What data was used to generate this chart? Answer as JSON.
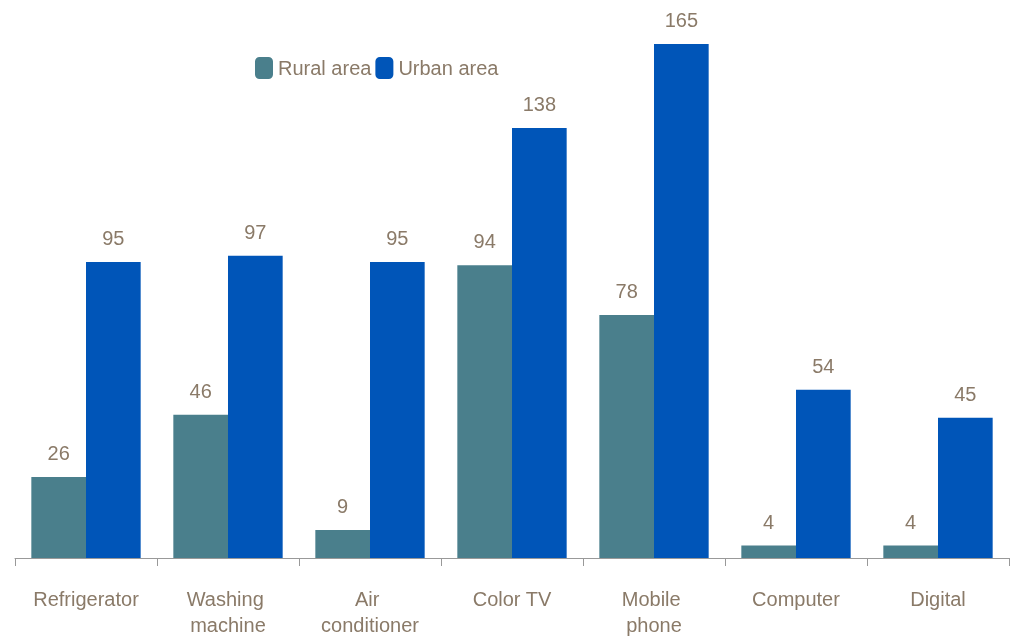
{
  "chart_data": {
    "type": "bar",
    "categories": [
      "Refrigerator",
      "Washing machine",
      "Air conditioner",
      "Color TV",
      "Mobile phone",
      "Computer",
      "Digital"
    ],
    "series": [
      {
        "name": "Rural area",
        "color": "#4a7f8c",
        "values": [
          26,
          46,
          9,
          94,
          78,
          4,
          4
        ]
      },
      {
        "name": "Urban area",
        "color": "#0055b8",
        "values": [
          95,
          97,
          95,
          138,
          165,
          54,
          45
        ]
      }
    ],
    "data_labels": true,
    "legend": "top"
  }
}
